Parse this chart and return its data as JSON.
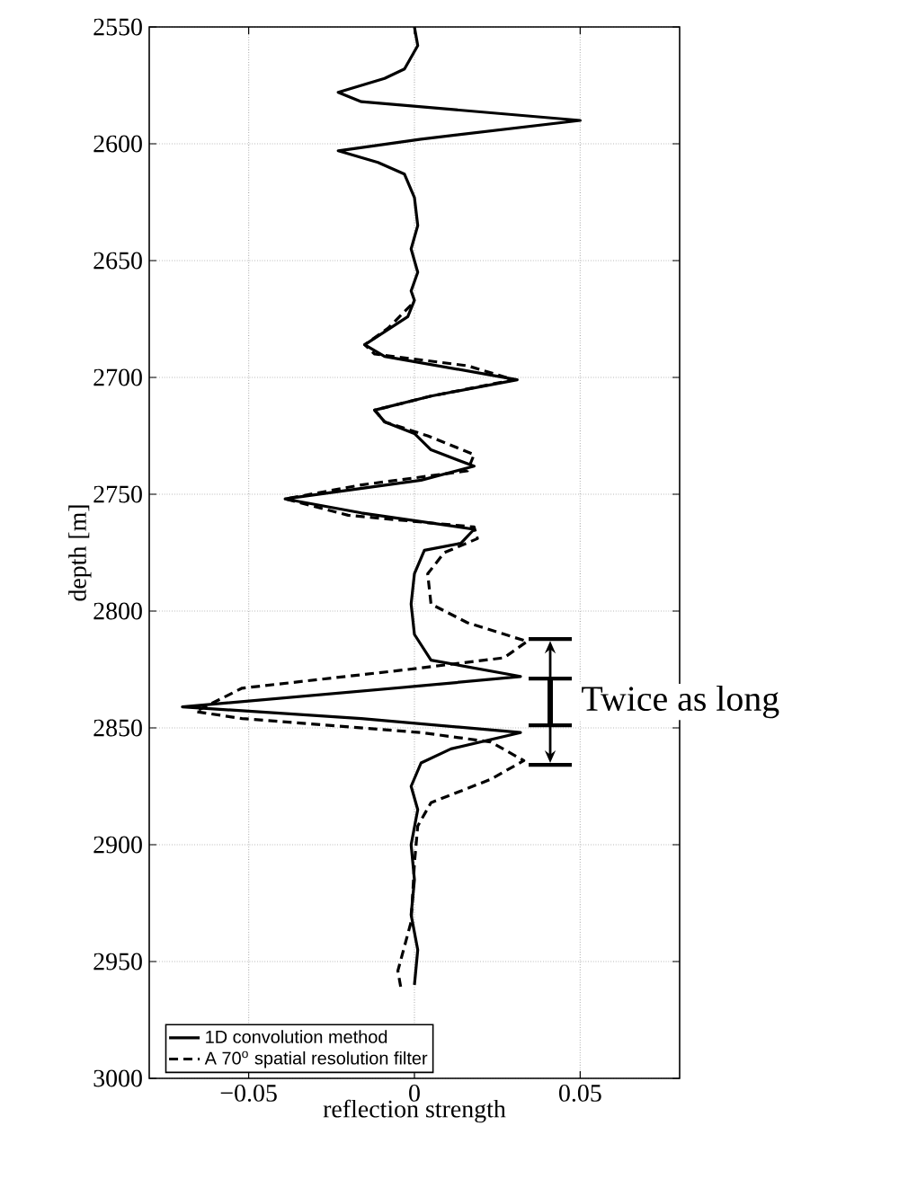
{
  "chart_data": {
    "type": "line",
    "orientation": "horizontal",
    "xlabel": "reflection strength",
    "ylabel": "depth [m]",
    "xlim": [
      -0.08,
      0.08
    ],
    "ylim": [
      3000,
      2550
    ],
    "xticks": [
      {
        "value": -0.05,
        "label": "−0.05"
      },
      0,
      0.05
    ],
    "yticks": [
      2550,
      2600,
      2650,
      2700,
      2750,
      2800,
      2850,
      2900,
      2950,
      3000
    ],
    "grid": true,
    "legend": "bottom left",
    "annotations": [
      "Twice as long"
    ],
    "series": [
      {
        "name": "1D convolution method",
        "color": "#000000",
        "line_style": "solid",
        "x": [
          2550,
          2558,
          2568,
          2572,
          2578,
          2582,
          2590,
          2598,
          2603,
          2608,
          2613,
          2623,
          2635,
          2645,
          2655,
          2663,
          2667,
          2674,
          2686,
          2691,
          2701,
          2708,
          2714,
          2719,
          2724,
          2731,
          2738,
          2744,
          2752,
          2758,
          2765,
          2771,
          2774,
          2784,
          2797,
          2810,
          2821,
          2828,
          2832,
          2841,
          2846,
          2852,
          2859,
          2865,
          2875,
          2885,
          2900,
          2915,
          2930,
          2945,
          2960
        ],
        "values": [
          0.0,
          0.001,
          -0.003,
          -0.009,
          -0.023,
          -0.016,
          0.05,
          0.002,
          -0.023,
          -0.011,
          -0.003,
          0.0,
          0.001,
          -0.001,
          0.001,
          -0.001,
          0.0,
          -0.002,
          -0.015,
          -0.009,
          0.031,
          0.005,
          -0.012,
          -0.009,
          0.0,
          0.005,
          0.018,
          0.002,
          -0.039,
          -0.016,
          0.018,
          0.014,
          0.003,
          0.0,
          -0.001,
          0.0,
          0.005,
          0.032,
          0.002,
          -0.07,
          -0.016,
          0.032,
          0.011,
          0.002,
          -0.001,
          0.001,
          -0.001,
          0.0,
          -0.001,
          0.001,
          0.0
        ]
      },
      {
        "name": "A 70$^{o}$ spatial resolution filter",
        "color": "#000000",
        "line_style": "dashed",
        "x": [
          2669,
          2679,
          2686,
          2690,
          2695,
          2701,
          2708,
          2714,
          2719,
          2725,
          2733,
          2740,
          2746,
          2752,
          2759,
          2764,
          2769,
          2775,
          2784,
          2797,
          2805,
          2813,
          2820,
          2825,
          2833,
          2843,
          2846,
          2852,
          2856,
          2864,
          2872,
          2882,
          2892,
          2908,
          2933,
          2954,
          2962
        ],
        "values": [
          -0.001,
          -0.008,
          -0.015,
          -0.012,
          0.016,
          0.03,
          0.005,
          -0.012,
          -0.009,
          0.004,
          0.018,
          0.016,
          -0.016,
          -0.039,
          -0.02,
          0.018,
          0.019,
          0.009,
          0.004,
          0.005,
          0.016,
          0.034,
          0.027,
          -0.002,
          -0.052,
          -0.066,
          -0.052,
          0.002,
          0.023,
          0.033,
          0.023,
          0.005,
          0.001,
          0.0,
          -0.001,
          -0.005,
          -0.004
        ]
      }
    ]
  }
}
